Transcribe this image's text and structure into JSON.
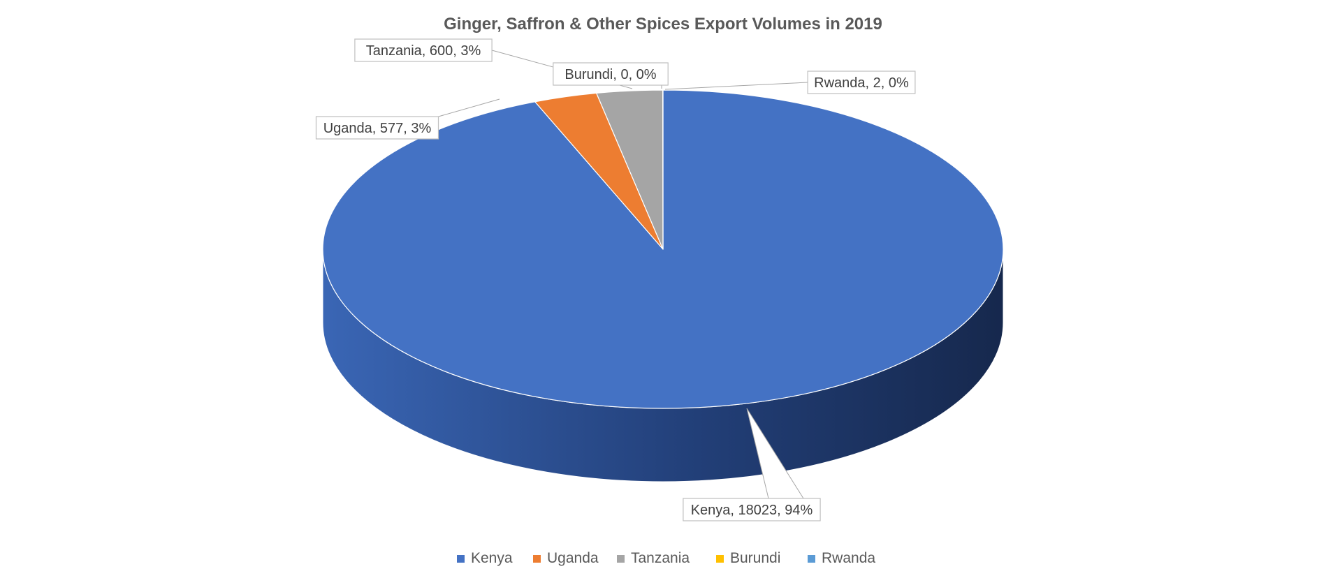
{
  "chart_data": {
    "type": "pie",
    "title": "Ginger, Saffron & Other Spices Export Volumes  in 2019",
    "categories": [
      "Kenya",
      "Uganda",
      "Tanzania",
      "Burundi",
      "Rwanda"
    ],
    "values": [
      18023,
      577,
      600,
      0,
      2
    ],
    "data_labels": [
      "Kenya, 18023, 94%",
      "Uganda, 577, 3%",
      "Tanzania, 600, 3%",
      "Burundi, 0, 0%",
      "Rwanda, 2, 0%"
    ],
    "colors": [
      "#4472C4",
      "#ED7D31",
      "#A5A5A5",
      "#FFC000",
      "#5B9BD5"
    ],
    "style": "3d",
    "legend_position": "bottom"
  }
}
